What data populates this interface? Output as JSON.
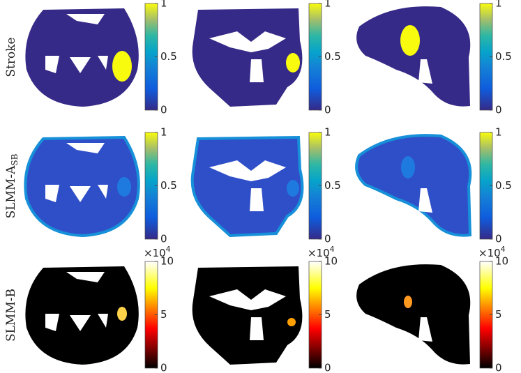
{
  "rows": [
    {
      "label": "Stroke",
      "colorbars": [
        {
          "ticks": [
            0,
            0.5,
            1
          ]
        },
        {
          "ticks": [
            0,
            0.5,
            1
          ]
        },
        {
          "ticks": [
            0,
            0.5,
            1
          ]
        }
      ]
    },
    {
      "label": "SLMM-A",
      "subscript": "SB",
      "colorbars": [
        {
          "ticks": [
            0,
            0.5,
            1
          ]
        },
        {
          "ticks": [
            0,
            0.5,
            1
          ]
        },
        {
          "ticks": [
            0,
            0.5,
            1
          ]
        }
      ]
    },
    {
      "label": "SLMM-B",
      "colorbars": [
        {
          "ticks": [
            0,
            5,
            10
          ],
          "multiplier": {
            "base": "×10",
            "exponent": "4"
          }
        },
        {
          "ticks": [
            0,
            5,
            10
          ],
          "multiplier": {
            "base": "×10",
            "exponent": "4"
          }
        },
        {
          "ticks": [
            0,
            5,
            10
          ],
          "multiplier": {
            "base": "×10",
            "exponent": "4"
          }
        }
      ]
    }
  ]
}
